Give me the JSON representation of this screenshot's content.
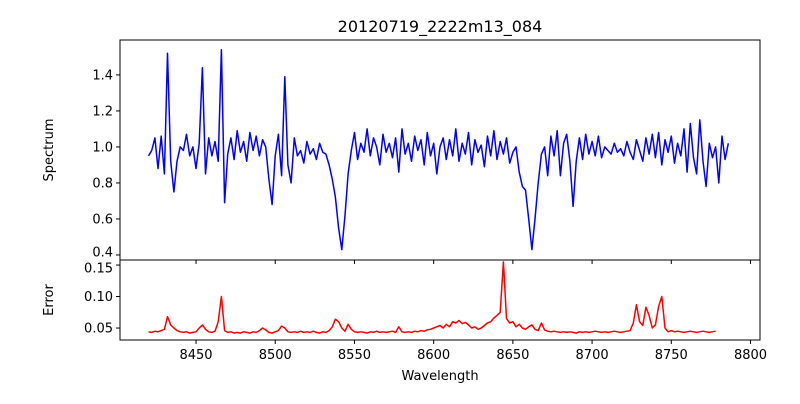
{
  "chart_data": [
    {
      "type": "line",
      "title": "20120719_2222m13_084",
      "xlabel": "",
      "ylabel": "Spectrum",
      "xlim": [
        8402,
        8806
      ],
      "ylim": [
        0.372,
        1.594
      ],
      "xticks": [
        8450,
        8500,
        8550,
        8600,
        8650,
        8700,
        8750,
        8800
      ],
      "yticks": [
        0.4,
        0.6,
        0.8,
        1.0,
        1.2,
        1.4
      ],
      "ytick_labels": [
        "0.4",
        "0.6",
        "0.8",
        "1.0",
        "1.2",
        "1.4"
      ],
      "color": "#0000ff",
      "x_start": 8420,
      "x_step": 2,
      "y": [
        0.95,
        0.98,
        1.05,
        0.88,
        1.06,
        0.85,
        1.52,
        0.92,
        0.75,
        0.92,
        1.0,
        0.98,
        1.07,
        0.95,
        1.0,
        0.88,
        1.02,
        1.44,
        0.85,
        1.05,
        0.95,
        1.03,
        0.92,
        1.54,
        0.69,
        0.96,
        1.05,
        0.93,
        1.09,
        0.97,
        1.03,
        0.92,
        1.08,
        0.98,
        1.06,
        0.95,
        1.04,
        1.0,
        0.82,
        0.68,
        0.95,
        1.07,
        0.84,
        1.39,
        0.9,
        0.8,
        1.05,
        0.95,
        0.98,
        0.91,
        1.03,
        0.96,
        0.99,
        0.93,
        1.02,
        0.97,
        0.96,
        0.9,
        0.82,
        0.72,
        0.55,
        0.43,
        0.62,
        0.85,
        0.98,
        1.08,
        0.93,
        1.02,
        0.97,
        1.1,
        0.95,
        1.05,
        1.0,
        0.9,
        1.07,
        0.97,
        1.02,
        0.94,
        1.05,
        0.86,
        1.1,
        0.96,
        1.02,
        0.92,
        1.06,
        0.98,
        1.04,
        0.9,
        1.08,
        0.95,
        1.02,
        0.85,
        1.0,
        1.05,
        0.93,
        1.04,
        0.95,
        1.1,
        0.92,
        1.02,
        0.96,
        1.08,
        0.9,
        1.04,
        0.97,
        1.01,
        0.89,
        1.06,
        0.95,
        1.09,
        0.93,
        1.03,
        0.96,
        1.05,
        0.91,
        0.97,
        1.0,
        0.86,
        0.78,
        0.76,
        0.6,
        0.43,
        0.6,
        0.8,
        0.96,
        1.0,
        0.84,
        1.06,
        0.95,
        1.09,
        0.84,
        1.02,
        1.07,
        0.92,
        0.67,
        0.92,
        1.05,
        0.93,
        1.07,
        0.96,
        1.03,
        0.95,
        1.06,
        0.94,
        1.0,
        0.98,
        0.96,
        1.02,
        0.97,
        0.99,
        0.95,
        1.03,
        0.97,
        0.93,
        1.04,
        0.98,
        0.92,
        1.05,
        0.96,
        1.07,
        0.94,
        1.08,
        0.9,
        1.04,
        0.97,
        1.06,
        0.91,
        1.02,
        0.95,
        1.1,
        0.86,
        1.13,
        0.94,
        0.85,
        1.15,
        0.92,
        0.78,
        1.02,
        0.94,
        1.0,
        0.8,
        1.06,
        0.93,
        1.02
      ]
    },
    {
      "type": "line",
      "title": "",
      "xlabel": "Wavelength",
      "ylabel": "Error",
      "xlim": [
        8402,
        8806
      ],
      "ylim": [
        0.031,
        0.158
      ],
      "xticks": [
        8450,
        8500,
        8550,
        8600,
        8650,
        8700,
        8750,
        8800
      ],
      "xtick_labels": [
        "8450",
        "8500",
        "8550",
        "8600",
        "8650",
        "8700",
        "8750",
        "8800"
      ],
      "yticks": [
        0.05,
        0.1,
        0.15
      ],
      "ytick_labels": [
        "0.05",
        "0.10",
        "0.15"
      ],
      "color": "#ff0000",
      "x_start": 8420,
      "x_step": 2,
      "y": [
        0.044,
        0.043,
        0.045,
        0.044,
        0.046,
        0.048,
        0.068,
        0.055,
        0.05,
        0.046,
        0.044,
        0.043,
        0.044,
        0.042,
        0.043,
        0.044,
        0.05,
        0.055,
        0.048,
        0.044,
        0.043,
        0.045,
        0.06,
        0.1,
        0.046,
        0.043,
        0.044,
        0.042,
        0.043,
        0.042,
        0.044,
        0.043,
        0.042,
        0.044,
        0.043,
        0.046,
        0.05,
        0.047,
        0.043,
        0.042,
        0.044,
        0.046,
        0.053,
        0.05,
        0.044,
        0.043,
        0.044,
        0.043,
        0.045,
        0.043,
        0.044,
        0.043,
        0.045,
        0.043,
        0.042,
        0.044,
        0.043,
        0.046,
        0.052,
        0.064,
        0.06,
        0.05,
        0.045,
        0.056,
        0.048,
        0.044,
        0.043,
        0.044,
        0.043,
        0.042,
        0.044,
        0.043,
        0.045,
        0.043,
        0.044,
        0.043,
        0.044,
        0.045,
        0.043,
        0.052,
        0.044,
        0.043,
        0.044,
        0.043,
        0.045,
        0.044,
        0.046,
        0.045,
        0.047,
        0.048,
        0.05,
        0.052,
        0.054,
        0.05,
        0.056,
        0.052,
        0.06,
        0.058,
        0.062,
        0.057,
        0.059,
        0.055,
        0.05,
        0.052,
        0.048,
        0.05,
        0.054,
        0.058,
        0.06,
        0.066,
        0.07,
        0.075,
        0.155,
        0.065,
        0.058,
        0.06,
        0.052,
        0.056,
        0.05,
        0.048,
        0.052,
        0.055,
        0.048,
        0.046,
        0.058,
        0.047,
        0.045,
        0.044,
        0.045,
        0.044,
        0.043,
        0.044,
        0.043,
        0.044,
        0.043,
        0.042,
        0.044,
        0.043,
        0.044,
        0.043,
        0.044,
        0.045,
        0.044,
        0.043,
        0.044,
        0.043,
        0.044,
        0.045,
        0.044,
        0.043,
        0.044,
        0.045,
        0.046,
        0.058,
        0.087,
        0.06,
        0.054,
        0.083,
        0.07,
        0.05,
        0.055,
        0.084,
        0.1,
        0.05,
        0.044,
        0.046,
        0.044,
        0.045,
        0.044,
        0.043,
        0.044,
        0.045,
        0.044,
        0.043,
        0.044,
        0.045,
        0.044,
        0.043,
        0.044,
        0.045
      ]
    }
  ]
}
